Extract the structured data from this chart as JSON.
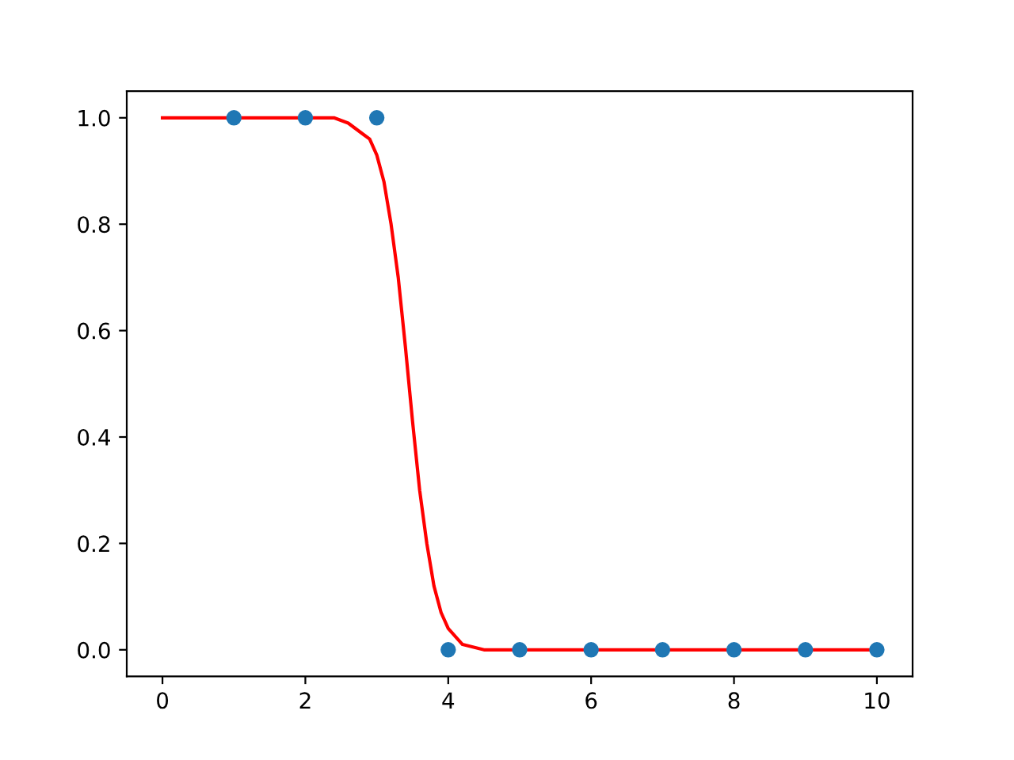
{
  "chart_data": {
    "type": "scatter",
    "series": [
      {
        "color": "#1f77b4",
        "marker": "circle",
        "x": [
          1,
          2,
          3,
          4,
          5,
          6,
          7,
          8,
          9,
          10
        ],
        "values": [
          1,
          1,
          1,
          0,
          0,
          0,
          0,
          0,
          0,
          0
        ]
      },
      {
        "type": "line",
        "color": "#ff0000",
        "marker": "none",
        "line_style": "solid",
        "x": [
          0,
          0.5,
          1,
          1.5,
          2,
          2.4,
          2.6,
          2.8,
          2.9,
          3.0,
          3.1,
          3.2,
          3.3,
          3.4,
          3.5,
          3.6,
          3.7,
          3.8,
          3.9,
          4.0,
          4.2,
          4.5,
          5,
          6,
          7,
          8,
          9,
          10
        ],
        "values": [
          1.0,
          1.0,
          1.0,
          1.0,
          1.0,
          1.0,
          0.99,
          0.97,
          0.96,
          0.93,
          0.88,
          0.8,
          0.7,
          0.57,
          0.43,
          0.3,
          0.2,
          0.12,
          0.07,
          0.04,
          0.01,
          0.0,
          0.0,
          0.0,
          0.0,
          0.0,
          0.0,
          0.0
        ]
      }
    ],
    "xlim": [
      -0.5,
      10.5
    ],
    "ylim": [
      -0.05,
      1.05
    ],
    "xticks": [
      0,
      2,
      4,
      6,
      8,
      10
    ],
    "yticks": [
      {
        "value": 0,
        "label": "0.0"
      },
      {
        "value": 0.2,
        "label": "0.2"
      },
      {
        "value": 0.4,
        "label": "0.4"
      },
      {
        "value": 0.6,
        "label": "0.6"
      },
      {
        "value": 0.8,
        "label": "0.8"
      },
      {
        "value": 1,
        "label": "1.0"
      }
    ],
    "grid": false,
    "legend": false
  }
}
